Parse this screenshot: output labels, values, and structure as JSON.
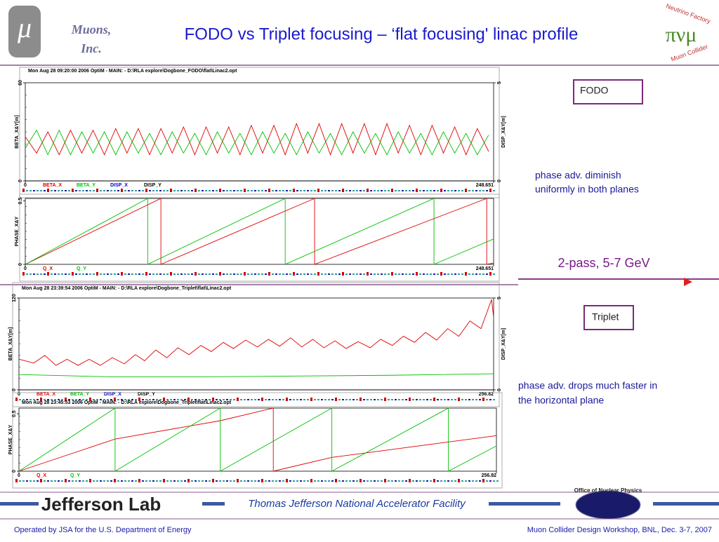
{
  "header": {
    "logo_symbol": "μ",
    "org_line1": "Muons,",
    "org_line2": "Inc.",
    "title": "FODO vs Triplet focusing – ‘flat focusing' linac profile",
    "logo_right_top": "Neutrino Factory",
    "logo_right_bottom": "Muon Collider"
  },
  "notes": {
    "fodo_box": "FODO",
    "fodo_text": [
      "phase adv. diminish",
      "uniformly in both planes"
    ],
    "pass": "2-pass, 5-7 GeV",
    "triplet_box": "Triplet",
    "triplet_text": [
      "phase adv. drops much faster in",
      "the horizontal plane"
    ]
  },
  "footer": {
    "lab": "Jefferson Lab",
    "facility": "Thomas Jefferson National Accelerator Facility",
    "office": "Office of Nuclear Physics",
    "left": "Operated by JSA for the U.S. Department of Energy",
    "right": "Muon Collider Design Workshop, BNL, Dec. 3-7, 2007"
  },
  "chart_data": [
    {
      "type": "line",
      "header": "Mon Aug 28 09:20:00 2006   OptiM - MAIN: - D:\\RLA explore\\Dogbone_FODO\\flat\\Linac2.opt",
      "ylabel": "BETA_X&Y[m]",
      "y2label": "DISP_X&Y[m]",
      "xlim": [
        0,
        248.651
      ],
      "xticks": [
        0,
        248.651
      ],
      "ylim": [
        0,
        60
      ],
      "yticks": [
        0,
        60
      ],
      "y2lim": [
        0,
        5
      ],
      "y2ticks": [
        0,
        5
      ],
      "series": [
        {
          "name": "BETA_X",
          "color": "#e00000",
          "x": [
            0,
            6,
            12,
            18,
            24,
            30,
            36,
            42,
            48,
            54,
            60,
            66,
            72,
            78,
            84,
            90,
            96,
            102,
            108,
            114,
            120,
            126,
            132,
            138,
            144,
            150,
            156,
            162,
            168,
            174,
            180,
            186,
            192,
            198,
            204,
            210,
            216,
            222,
            228,
            234,
            240,
            246
          ],
          "values": [
            27,
            17,
            30,
            16,
            31,
            17,
            31,
            16,
            32,
            17,
            32,
            16,
            32,
            17,
            33,
            16,
            33,
            17,
            33,
            16,
            34,
            17,
            34,
            16,
            35,
            17,
            35,
            16,
            35,
            17,
            35,
            16,
            35,
            17,
            34,
            16,
            34,
            17,
            33,
            16,
            32,
            18
          ]
        },
        {
          "name": "BETA_Y",
          "color": "#00c000",
          "x": [
            0,
            6,
            12,
            18,
            24,
            30,
            36,
            42,
            48,
            54,
            60,
            66,
            72,
            78,
            84,
            90,
            96,
            102,
            108,
            114,
            120,
            126,
            132,
            138,
            144,
            150,
            156,
            162,
            168,
            174,
            180,
            186,
            192,
            198,
            204,
            210,
            216,
            222,
            228,
            234,
            240,
            246
          ],
          "values": [
            20,
            31,
            16,
            31,
            16,
            30,
            17,
            30,
            16,
            30,
            17,
            29,
            16,
            30,
            17,
            29,
            16,
            30,
            17,
            29,
            16,
            30,
            17,
            29,
            16,
            30,
            17,
            29,
            16,
            30,
            17,
            29,
            16,
            30,
            17,
            29,
            16,
            30,
            17,
            29,
            16,
            28
          ]
        },
        {
          "name": "DISP_X",
          "color": "#0000d0",
          "axis": "y2",
          "x": [
            0,
            248.651
          ],
          "values": [
            0,
            0
          ]
        },
        {
          "name": "DISP_Y",
          "color": "#000000",
          "axis": "y2",
          "x": [
            0,
            248.651
          ],
          "values": [
            0,
            0
          ]
        }
      ]
    },
    {
      "type": "line",
      "ylabel": "PHASE_X&Y",
      "xlim": [
        0,
        248.651
      ],
      "xticks": [
        0,
        248.651
      ],
      "ylim": [
        0,
        0.52
      ],
      "yticks": [
        0,
        0.5
      ],
      "series": [
        {
          "name": "Q_X",
          "color": "#e00000",
          "x": [
            0,
            72,
            72,
            153.6,
            153.6,
            245,
            245,
            248.651
          ],
          "values": [
            0,
            0.52,
            0,
            0.52,
            0,
            0.52,
            0,
            0.01
          ]
        },
        {
          "name": "Q_Y",
          "color": "#00c000",
          "x": [
            0,
            65,
            65,
            138,
            138,
            217,
            217,
            248.651
          ],
          "values": [
            0,
            0.52,
            0,
            0.52,
            0,
            0.52,
            0,
            0.2
          ]
        }
      ]
    },
    {
      "type": "line",
      "header": "Mon Aug 28 23:39:54 2006   OptiM - MAIN: - D:\\RLA explore\\Dogbone_Triplet\\flat\\Linac2.opt",
      "ylabel": "BETA_X&Y[m]",
      "y2label": "DISP_X&Y[m]",
      "xlim": [
        0,
        256.82
      ],
      "xticks": [
        0,
        256.82
      ],
      "ylim": [
        0,
        120
      ],
      "yticks": [
        0,
        120
      ],
      "y2lim": [
        0,
        5
      ],
      "y2ticks": [
        0,
        5
      ],
      "series": [
        {
          "name": "BETA_X",
          "color": "#e00000",
          "x": [
            0,
            8,
            14,
            20,
            26,
            32,
            38,
            44,
            50.5,
            57,
            63,
            68,
            74,
            80,
            86,
            92,
            98.5,
            104,
            110.6,
            116,
            122.7,
            129,
            135,
            141,
            147,
            153,
            159,
            165,
            171,
            177,
            183.5,
            190,
            195.7,
            202,
            208,
            214,
            220,
            226,
            232,
            238,
            244,
            250,
            255.7,
            256.82
          ],
          "values": [
            40,
            35,
            45,
            32,
            40,
            32,
            40,
            32,
            42,
            34,
            46,
            38,
            52,
            42,
            55,
            46,
            58,
            50,
            62,
            54,
            65,
            56,
            66,
            57,
            68,
            56,
            66,
            55,
            64,
            54,
            63,
            55,
            66,
            58,
            70,
            62,
            75,
            65,
            80,
            70,
            90,
            80,
            118,
            95
          ]
        },
        {
          "name": "BETA_Y",
          "color": "#00c000",
          "x": [
            0,
            50,
            100,
            150,
            200,
            256.82
          ],
          "values": [
            20,
            17,
            17,
            18,
            19,
            21
          ]
        },
        {
          "name": "DISP_X",
          "color": "#0000d0",
          "axis": "y2",
          "x": [
            0,
            256.82
          ],
          "values": [
            0,
            0
          ]
        },
        {
          "name": "DISP_Y",
          "color": "#000000",
          "axis": "y2",
          "x": [
            0,
            256.82
          ],
          "values": [
            0,
            0
          ]
        }
      ]
    },
    {
      "type": "line",
      "header": "Mon Aug 28 23:45:53 2006   OptiM - MAIN: - D:\\RLA explore\\Dogbone_Triplet\\flat\\Linac2.opt",
      "ylabel": "PHASE_X&Y",
      "xlim": [
        0,
        256.82
      ],
      "xticks": [
        0,
        256.82
      ],
      "ylim": [
        0,
        0.55
      ],
      "yticks": [
        0,
        0.5
      ],
      "series": [
        {
          "name": "Q_X",
          "color": "#e00000",
          "x": [
            0,
            51.7,
            108.3,
            136.8,
            136.8,
            168.3,
            256.82
          ],
          "values": [
            0,
            0.28,
            0.44,
            0.55,
            0,
            0.12,
            0.31
          ]
        },
        {
          "name": "Q_Y",
          "color": "#00c000",
          "x": [
            0,
            51.7,
            51.7,
            108.3,
            108.3,
            168.3,
            168.3,
            231,
            231,
            256.82
          ],
          "values": [
            0,
            0.55,
            0,
            0.55,
            0,
            0.55,
            0,
            0.55,
            0,
            0.22
          ]
        }
      ]
    }
  ]
}
